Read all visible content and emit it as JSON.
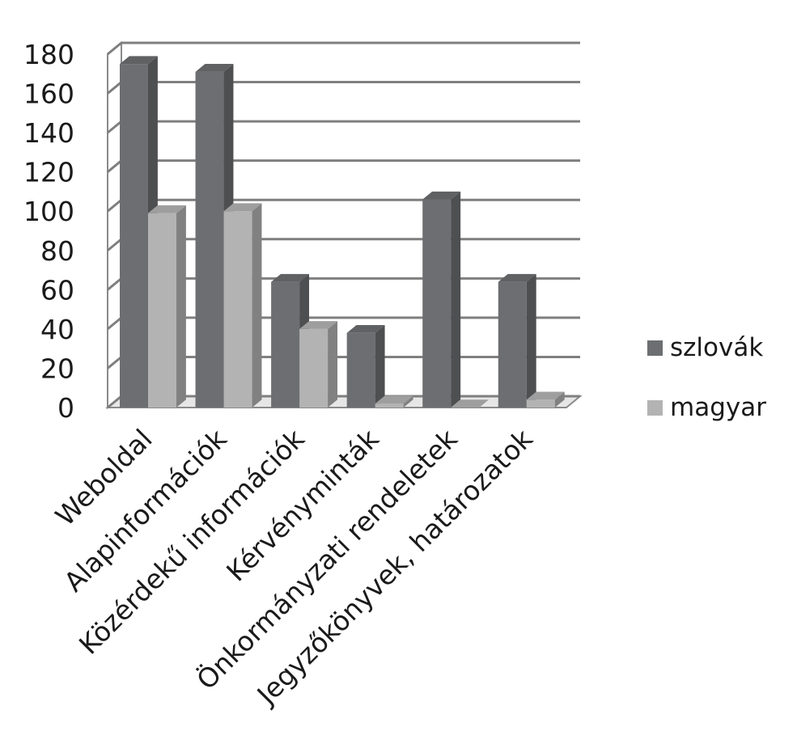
{
  "chart_data": {
    "type": "bar",
    "style": "3d-clustered-column",
    "categories": [
      "Weboldal",
      "Alapinformációk",
      "Közérdekű információk",
      "Kérvényminták",
      "Önkormányzati rendeletek",
      "Jegyzőkönyvek, határozatok"
    ],
    "series": [
      {
        "name": "szlovák",
        "color": "#6d6e71",
        "values": [
          175,
          171,
          64,
          38,
          106,
          64
        ]
      },
      {
        "name": "magyar",
        "color": "#b3b3b3",
        "values": [
          99,
          100,
          40,
          2,
          0,
          4
        ]
      }
    ],
    "ylim": [
      0,
      180
    ],
    "yticks": [
      "0",
      "20",
      "40",
      "60",
      "80",
      "100",
      "120",
      "140",
      "160",
      "180"
    ],
    "grid": true,
    "legend_position": "right"
  }
}
